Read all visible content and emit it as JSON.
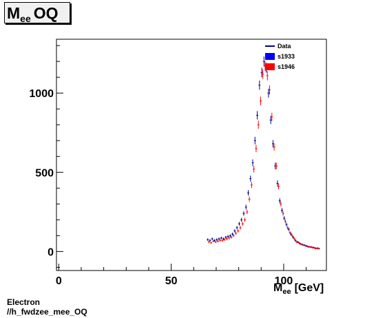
{
  "title": {
    "main": "M",
    "sub": "ee",
    "rest": "OQ"
  },
  "footer": {
    "line1": "Electron",
    "line2": "//h_fwdzee_mee_OQ"
  },
  "colors": {
    "Data": "#000080",
    "s1933": "#0000ff",
    "s1946": "#ff0000"
  },
  "chart_data": {
    "type": "scatter",
    "title": "Mee OQ",
    "xlabel": "M_ee [GeV]",
    "xlabel_main": "M",
    "xlabel_sub": "ee",
    "xlabel_unit": "[GeV]",
    "ylabel": "",
    "xlim": [
      -1,
      119
    ],
    "ylim": [
      -120,
      1340
    ],
    "x_ticks": [
      0,
      50,
      100
    ],
    "y_ticks": [
      0,
      500,
      1000
    ],
    "grid": false,
    "legend_position": "top-right",
    "legend": [
      {
        "name": "Data",
        "style": "line",
        "color": "#000080"
      },
      {
        "name": "s1933",
        "style": "box",
        "color": "#0000ff"
      },
      {
        "name": "s1946",
        "style": "box",
        "color": "#ff0000"
      }
    ],
    "series": [
      {
        "name": "Data",
        "x": [
          66.5,
          67.5,
          68.5,
          69.5,
          70.5,
          71.5,
          72.5,
          73.5,
          74.5,
          75.5,
          76.5,
          77.5,
          78.5,
          79.5,
          80.5,
          81.5,
          82.5,
          83.5,
          84.5,
          85.5,
          86.5,
          87.5,
          88.5,
          89.5,
          90.5,
          91.5,
          92.5,
          93.5,
          94.5,
          95.5,
          96.5,
          97.5,
          98.5,
          99.5,
          100.5,
          101.5,
          102.5,
          103.5,
          104.5,
          105.5,
          106.5,
          107.5,
          108.5,
          109.5,
          110.5,
          111.5,
          112.5,
          113.5,
          114.5,
          115.5
        ],
        "y": [
          75,
          70,
          80,
          70,
          75,
          80,
          85,
          80,
          90,
          95,
          100,
          110,
          130,
          150,
          175,
          200,
          240,
          280,
          370,
          460,
          560,
          700,
          860,
          1050,
          1130,
          1200,
          1160,
          1000,
          830,
          680,
          540,
          430,
          320,
          260,
          210,
          170,
          140,
          110,
          90,
          70,
          60,
          50,
          45,
          40,
          35,
          30,
          28,
          25,
          20,
          20
        ]
      },
      {
        "name": "s1946",
        "x": [
          66.5,
          67.5,
          68.5,
          69.5,
          70.5,
          71.5,
          72.5,
          73.5,
          74.5,
          75.5,
          76.5,
          77.5,
          78.5,
          79.5,
          80.5,
          81.5,
          82.5,
          83.5,
          84.5,
          85.5,
          86.5,
          87.5,
          88.5,
          89.5,
          90.5,
          91.5,
          92.5,
          93.5,
          94.5,
          95.5,
          96.5,
          97.5,
          98.5,
          99.5,
          100.5,
          101.5,
          102.5,
          103.5,
          104.5,
          105.5,
          106.5,
          107.5,
          108.5,
          109.5,
          110.5,
          111.5,
          112.5,
          113.5,
          114.5,
          115.5
        ],
        "y": [
          60,
          55,
          65,
          60,
          65,
          70,
          70,
          75,
          80,
          85,
          90,
          100,
          115,
          130,
          150,
          175,
          200,
          250,
          330,
          420,
          520,
          650,
          800,
          950,
          1120,
          1170,
          1110,
          1020,
          850,
          660,
          540,
          410,
          300,
          240,
          190,
          150,
          120,
          100,
          80,
          60,
          55,
          45,
          40,
          35,
          30,
          28,
          25,
          22,
          20,
          18
        ]
      },
      {
        "name": "s1933",
        "x": [],
        "y": []
      }
    ]
  }
}
